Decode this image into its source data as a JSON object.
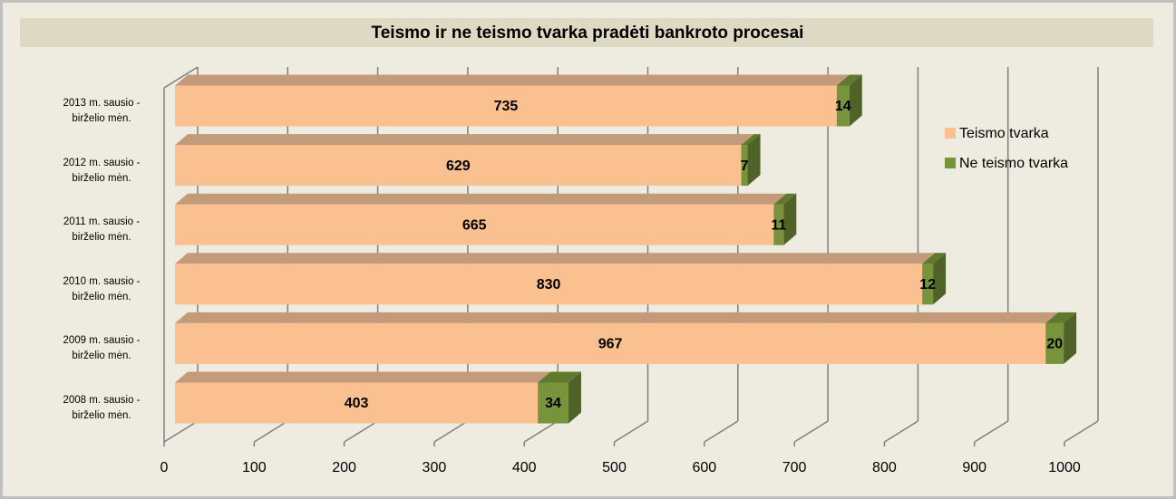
{
  "chart_data": {
    "type": "bar3d_stacked_horizontal",
    "title": "Teismo ir ne teismo tvarka pradėti bankroto procesai",
    "categories": [
      "2013 m. sausio - birželio mėn.",
      "2012 m. sausio - birželio mėn.",
      "2011 m. sausio - birželio mėn.",
      "2010 m. sausio - birželio mėn.",
      "2009 m. sausio - birželio mėn.",
      "2008 m. sausio - birželio mėn."
    ],
    "series": [
      {
        "name": "Teismo tvarka",
        "color": "#fac090",
        "values": [
          735,
          629,
          665,
          830,
          967,
          403
        ]
      },
      {
        "name": "Ne teismo tvarka",
        "color": "#77933c",
        "values": [
          14,
          7,
          11,
          12,
          20,
          34
        ]
      }
    ],
    "xlim": [
      0,
      1000
    ],
    "xticks": [
      0,
      100,
      200,
      300,
      400,
      500,
      600,
      700,
      800,
      900,
      1000
    ],
    "grid": true,
    "legend": "right"
  }
}
